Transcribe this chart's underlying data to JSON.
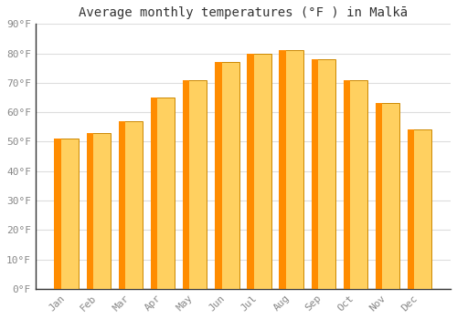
{
  "title": "Average monthly temperatures (°F ) in Malkā",
  "months": [
    "Jan",
    "Feb",
    "Mar",
    "Apr",
    "May",
    "Jun",
    "Jul",
    "Aug",
    "Sep",
    "Oct",
    "Nov",
    "Dec"
  ],
  "values": [
    51,
    53,
    57,
    65,
    71,
    77,
    80,
    81,
    78,
    71,
    63,
    54
  ],
  "bar_color_main": "#FFAA00",
  "bar_color_left": "#FF8C00",
  "bar_color_right": "#FFD060",
  "ylim": [
    0,
    90
  ],
  "yticks": [
    0,
    10,
    20,
    30,
    40,
    50,
    60,
    70,
    80,
    90
  ],
  "ytick_labels": [
    "0°F",
    "10°F",
    "20°F",
    "30°F",
    "40°F",
    "50°F",
    "60°F",
    "70°F",
    "80°F",
    "90°F"
  ],
  "background_color": "#FFFFFF",
  "grid_color": "#DDDDDD",
  "title_fontsize": 10,
  "tick_fontsize": 8,
  "bar_edge_color": "#CC8800",
  "bar_width": 0.75
}
